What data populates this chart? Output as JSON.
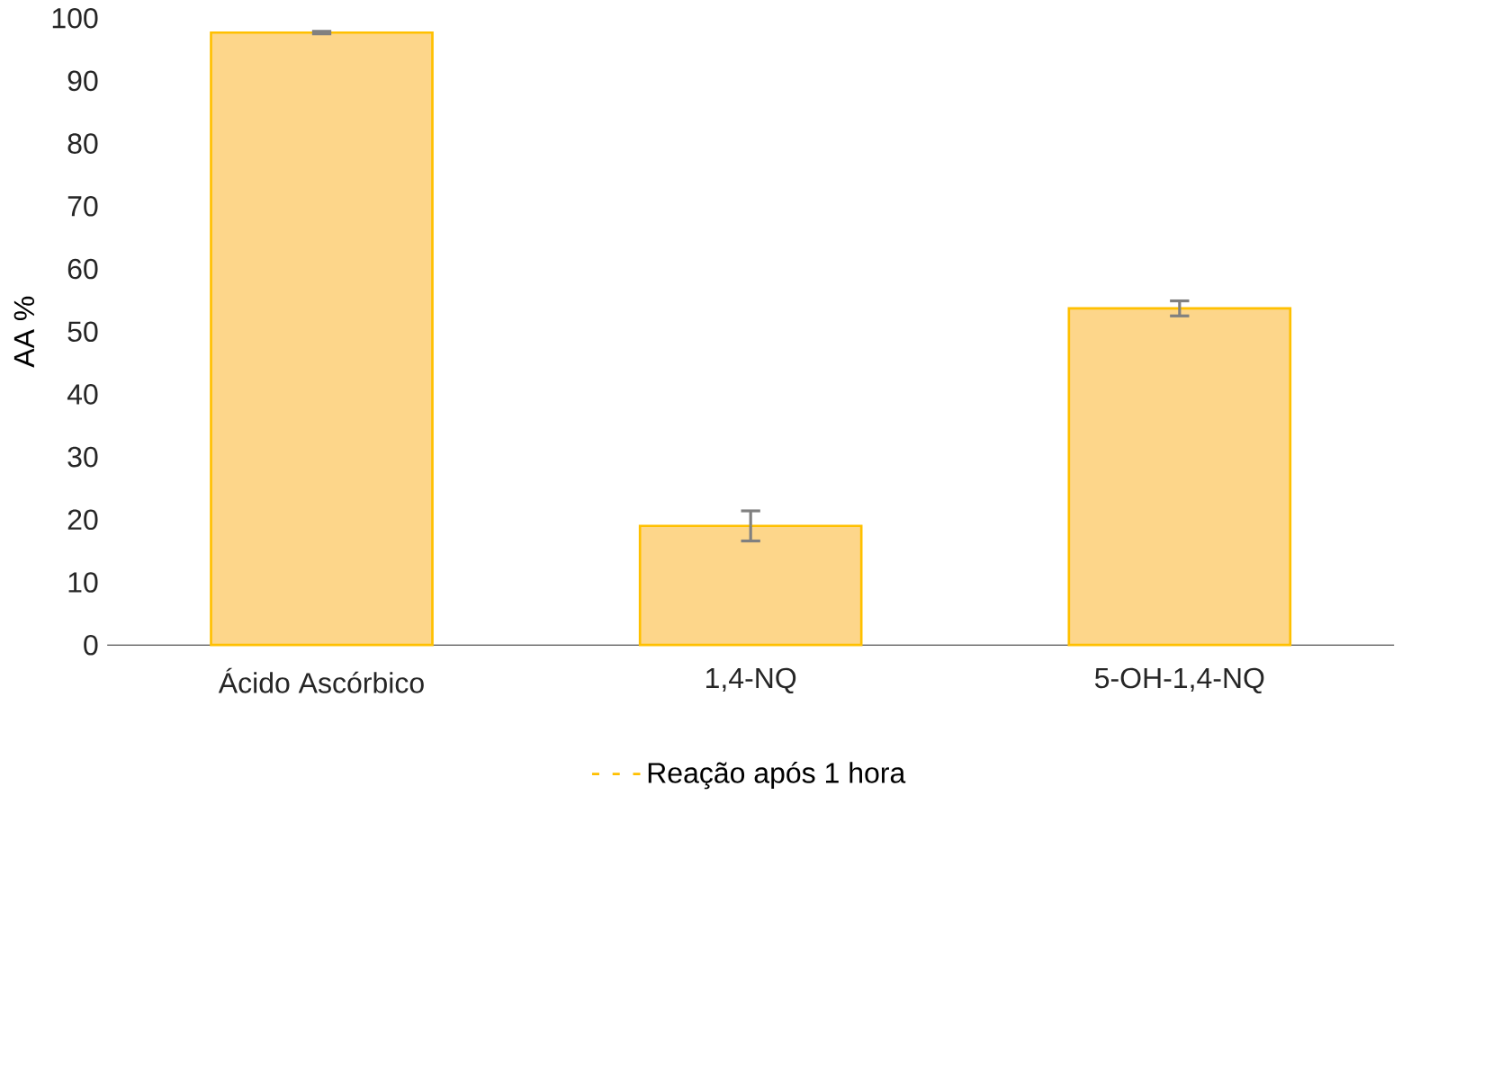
{
  "chart_data": {
    "type": "bar",
    "ylabel": "AA %",
    "categories": [
      "Ácido Ascórbico",
      "1,4-NQ",
      "5-OH-1,4-NQ"
    ],
    "series": [
      {
        "name": "Reação após 1 hora",
        "color": "#fdd68a",
        "values": [
          97.7,
          19.0,
          53.7
        ],
        "errors": [
          0.2,
          2.4,
          1.2
        ]
      }
    ],
    "ylim": [
      0,
      100
    ],
    "yticks": [
      0,
      10,
      20,
      30,
      40,
      50,
      60,
      70,
      80,
      90,
      100
    ],
    "grid": false,
    "legend": "bottom"
  }
}
